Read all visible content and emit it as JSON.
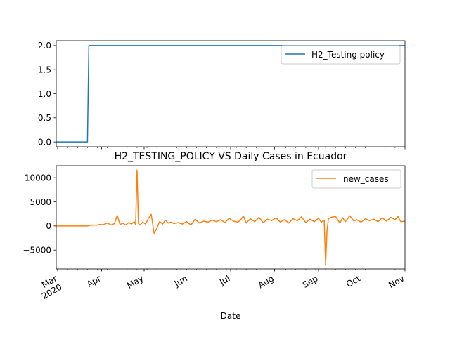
{
  "chart_data": [
    {
      "type": "line",
      "title": "",
      "xlabel": "",
      "ylabel": "",
      "xlim": [
        "2020-02-29",
        "2020-11-01"
      ],
      "ylim": [
        -0.1,
        2.1
      ],
      "yticks": [
        0.0,
        0.5,
        1.0,
        1.5,
        2.0
      ],
      "ytick_labels": [
        "0.0",
        "0.5",
        "1.0",
        "1.5",
        "2.0"
      ],
      "legend_position": "upper right",
      "series": [
        {
          "name": "H2_Testing policy",
          "color": "#1f77b4",
          "x": [
            "2020-02-29",
            "2020-03-22",
            "2020-03-23",
            "2020-11-01"
          ],
          "y": [
            0,
            0,
            2,
            2
          ]
        }
      ]
    },
    {
      "type": "line",
      "title": "H2_TESTING_POLICY VS Daily Cases in Ecuador",
      "xlabel": "Date",
      "ylabel": "",
      "xlim": [
        "2020-02-29",
        "2020-11-01"
      ],
      "ylim": [
        -8900,
        12500
      ],
      "yticks": [
        -5000,
        0,
        5000,
        10000
      ],
      "ytick_labels": [
        "−5000",
        "0",
        "5000",
        "10000"
      ],
      "xticks": [
        "2020-03-01",
        "2020-04-01",
        "2020-05-01",
        "2020-06-01",
        "2020-07-01",
        "2020-08-01",
        "2020-09-01",
        "2020-10-01",
        "2020-11-01"
      ],
      "xtick_labels": [
        "Mar\n2020",
        "Apr",
        "May",
        "Jun",
        "Jul",
        "Aug",
        "Sep",
        "Oct",
        "Nov"
      ],
      "legend_position": "upper right",
      "series": [
        {
          "name": "new_cases",
          "color": "#ff7f0e",
          "x": [
            "2020-02-29",
            "2020-03-10",
            "2020-03-20",
            "2020-03-22",
            "2020-03-25",
            "2020-03-28",
            "2020-03-31",
            "2020-04-02",
            "2020-04-05",
            "2020-04-08",
            "2020-04-10",
            "2020-04-12",
            "2020-04-14",
            "2020-04-16",
            "2020-04-18",
            "2020-04-20",
            "2020-04-22",
            "2020-04-24",
            "2020-04-25",
            "2020-04-26",
            "2020-04-27",
            "2020-04-28",
            "2020-04-30",
            "2020-05-02",
            "2020-05-04",
            "2020-05-06",
            "2020-05-08",
            "2020-05-10",
            "2020-05-11",
            "2020-05-12",
            "2020-05-14",
            "2020-05-16",
            "2020-05-18",
            "2020-05-20",
            "2020-05-22",
            "2020-05-25",
            "2020-05-28",
            "2020-05-31",
            "2020-06-03",
            "2020-06-06",
            "2020-06-09",
            "2020-06-12",
            "2020-06-15",
            "2020-06-18",
            "2020-06-21",
            "2020-06-24",
            "2020-06-27",
            "2020-06-30",
            "2020-07-03",
            "2020-07-06",
            "2020-07-08",
            "2020-07-10",
            "2020-07-12",
            "2020-07-15",
            "2020-07-18",
            "2020-07-21",
            "2020-07-24",
            "2020-07-27",
            "2020-07-30",
            "2020-08-02",
            "2020-08-05",
            "2020-08-08",
            "2020-08-11",
            "2020-08-14",
            "2020-08-17",
            "2020-08-20",
            "2020-08-23",
            "2020-08-26",
            "2020-08-29",
            "2020-09-01",
            "2020-09-03",
            "2020-09-05",
            "2020-09-06",
            "2020-09-07",
            "2020-09-08",
            "2020-09-10",
            "2020-09-13",
            "2020-09-16",
            "2020-09-18",
            "2020-09-20",
            "2020-09-23",
            "2020-09-26",
            "2020-09-28",
            "2020-10-01",
            "2020-10-04",
            "2020-10-07",
            "2020-10-10",
            "2020-10-13",
            "2020-10-16",
            "2020-10-19",
            "2020-10-22",
            "2020-10-25",
            "2020-10-27",
            "2020-10-29",
            "2020-11-01"
          ],
          "y": [
            0,
            0,
            0,
            0,
            200,
            150,
            300,
            250,
            600,
            200,
            500,
            2200,
            300,
            600,
            200,
            700,
            400,
            900,
            300,
            11600,
            500,
            200,
            800,
            400,
            1600,
            2400,
            -1500,
            -500,
            300,
            900,
            400,
            1200,
            600,
            800,
            500,
            700,
            400,
            900,
            200,
            1400,
            600,
            1000,
            800,
            1200,
            900,
            1300,
            700,
            1600,
            1000,
            800,
            1200,
            2100,
            600,
            1500,
            900,
            1800,
            700,
            1400,
            1100,
            1700,
            800,
            1300,
            600,
            1500,
            1100,
            1900,
            700,
            1400,
            900,
            1600,
            800,
            1200,
            -8000,
            -1000,
            1500,
            1800,
            2000,
            600,
            1700,
            900,
            2100,
            1000,
            1300,
            800,
            1500,
            1100,
            1400,
            900,
            1700,
            1000,
            1800,
            1300,
            2000,
            900,
            1000
          ]
        }
      ]
    }
  ]
}
